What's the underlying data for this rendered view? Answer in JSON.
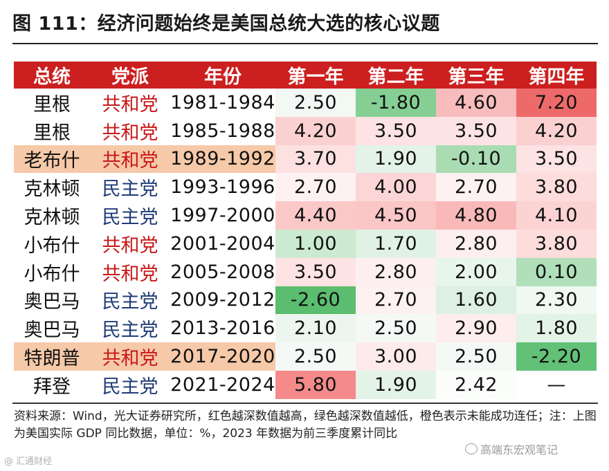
{
  "title": "图 111：经济问题始终是美国总统大选的核心议题",
  "table": {
    "headers": [
      "总统",
      "党派",
      "年份",
      "第一年",
      "第二年",
      "第三年",
      "第四年"
    ],
    "rows": [
      {
        "president": "里根",
        "party": "共和党",
        "years": "1981-1984",
        "values": [
          "2.50",
          "-1.80",
          "4.60",
          "7.20"
        ],
        "colors": [
          "#f2f8f3",
          "#85cf94",
          "#f8bcbc",
          "#ee6a6a"
        ],
        "orange": false
      },
      {
        "president": "里根",
        "party": "共和党",
        "years": "1985-1988",
        "values": [
          "4.20",
          "3.50",
          "3.50",
          "4.20"
        ],
        "colors": [
          "#fbd0d0",
          "#fde3e3",
          "#fde3e3",
          "#fbd0d0"
        ],
        "orange": false
      },
      {
        "president": "老布什",
        "party": "共和党",
        "years": "1989-1992",
        "values": [
          "3.70",
          "1.90",
          "-0.10",
          "3.50"
        ],
        "colors": [
          "#fde1e1",
          "#e4f3e7",
          "#a9dcb3",
          "#fde3e3"
        ],
        "orange": true
      },
      {
        "president": "克林顿",
        "party": "民主党",
        "years": "1993-1996",
        "values": [
          "2.70",
          "4.00",
          "2.70",
          "3.80"
        ],
        "colors": [
          "#fdf1f1",
          "#fcd6d6",
          "#fdf1f1",
          "#fddcdc"
        ],
        "orange": false
      },
      {
        "president": "克林顿",
        "party": "民主党",
        "years": "1997-2000",
        "values": [
          "4.40",
          "4.50",
          "4.80",
          "4.10"
        ],
        "colors": [
          "#fbc8c8",
          "#fbc6c6",
          "#f9b9b9",
          "#fcd3d3"
        ],
        "orange": false
      },
      {
        "president": "小布什",
        "party": "共和党",
        "years": "2001-2004",
        "values": [
          "1.00",
          "1.70",
          "2.80",
          "3.80"
        ],
        "colors": [
          "#cbead1",
          "#e0f2e4",
          "#fdefef",
          "#fddcdc"
        ],
        "orange": false
      },
      {
        "president": "小布什",
        "party": "共和党",
        "years": "2005-2008",
        "values": [
          "3.50",
          "2.80",
          "2.00",
          "0.10"
        ],
        "colors": [
          "#fde3e3",
          "#fdefef",
          "#e8f5eb",
          "#b0dfba"
        ],
        "orange": false
      },
      {
        "president": "奥巴马",
        "party": "民主党",
        "years": "2009-2012",
        "values": [
          "-2.60",
          "2.70",
          "1.60",
          "2.30"
        ],
        "colors": [
          "#5bbd6f",
          "#fdf1f1",
          "#ddf0e1",
          "#f0f8f2"
        ],
        "orange": false
      },
      {
        "president": "奥巴马",
        "party": "民主党",
        "years": "2013-2016",
        "values": [
          "2.10",
          "2.50",
          "2.90",
          "1.80"
        ],
        "colors": [
          "#ecf6ee",
          "#f5f9f6",
          "#fdeded",
          "#e3f3e6"
        ],
        "orange": false
      },
      {
        "president": "特朗普",
        "party": "共和党",
        "years": "2017-2020",
        "values": [
          "2.50",
          "3.00",
          "2.50",
          "-2.20"
        ],
        "colors": [
          "#f5f9f6",
          "#fdebeb",
          "#f5f9f6",
          "#63c177"
        ],
        "orange": true
      },
      {
        "president": "拜登",
        "party": "民主党",
        "years": "2021-2024",
        "values": [
          "5.80",
          "1.90",
          "2.42",
          "—"
        ],
        "colors": [
          "#f48a8a",
          "#e4f3e7",
          "#fbfdfb",
          "#ffffff"
        ],
        "orange": false
      }
    ]
  },
  "note": "资料来源：Wind，光大证券研究所，红色越深数值越高，绿色越深数值越低，橙色表示未能成功连任；注：上图为美国实际 GDP 同比数据，单位：%，2023 年数据为前三季度累计同比",
  "watermark": "高端东宏观笔记",
  "watermark_left": "@ 汇通财经"
}
